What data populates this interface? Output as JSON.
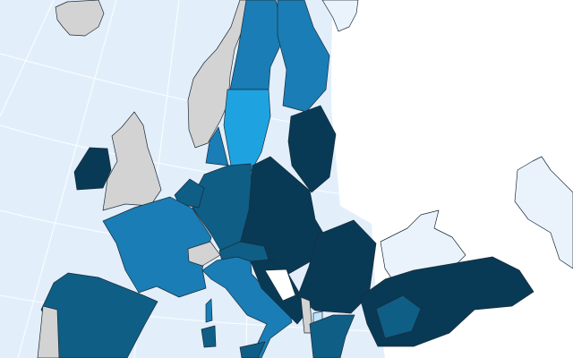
{
  "map": {
    "colors": {
      "sea": "#e2effb",
      "unclassified_land": "#eaf3fc",
      "outside_area": "#ffffff",
      "no_data": "#d3d3d3",
      "class_lowest": "#bfe4f7",
      "class_low": "#1fa3e0",
      "class_mid": "#1a7db5",
      "class_high": "#0f5e86",
      "class_highest": "#083a55"
    }
  }
}
